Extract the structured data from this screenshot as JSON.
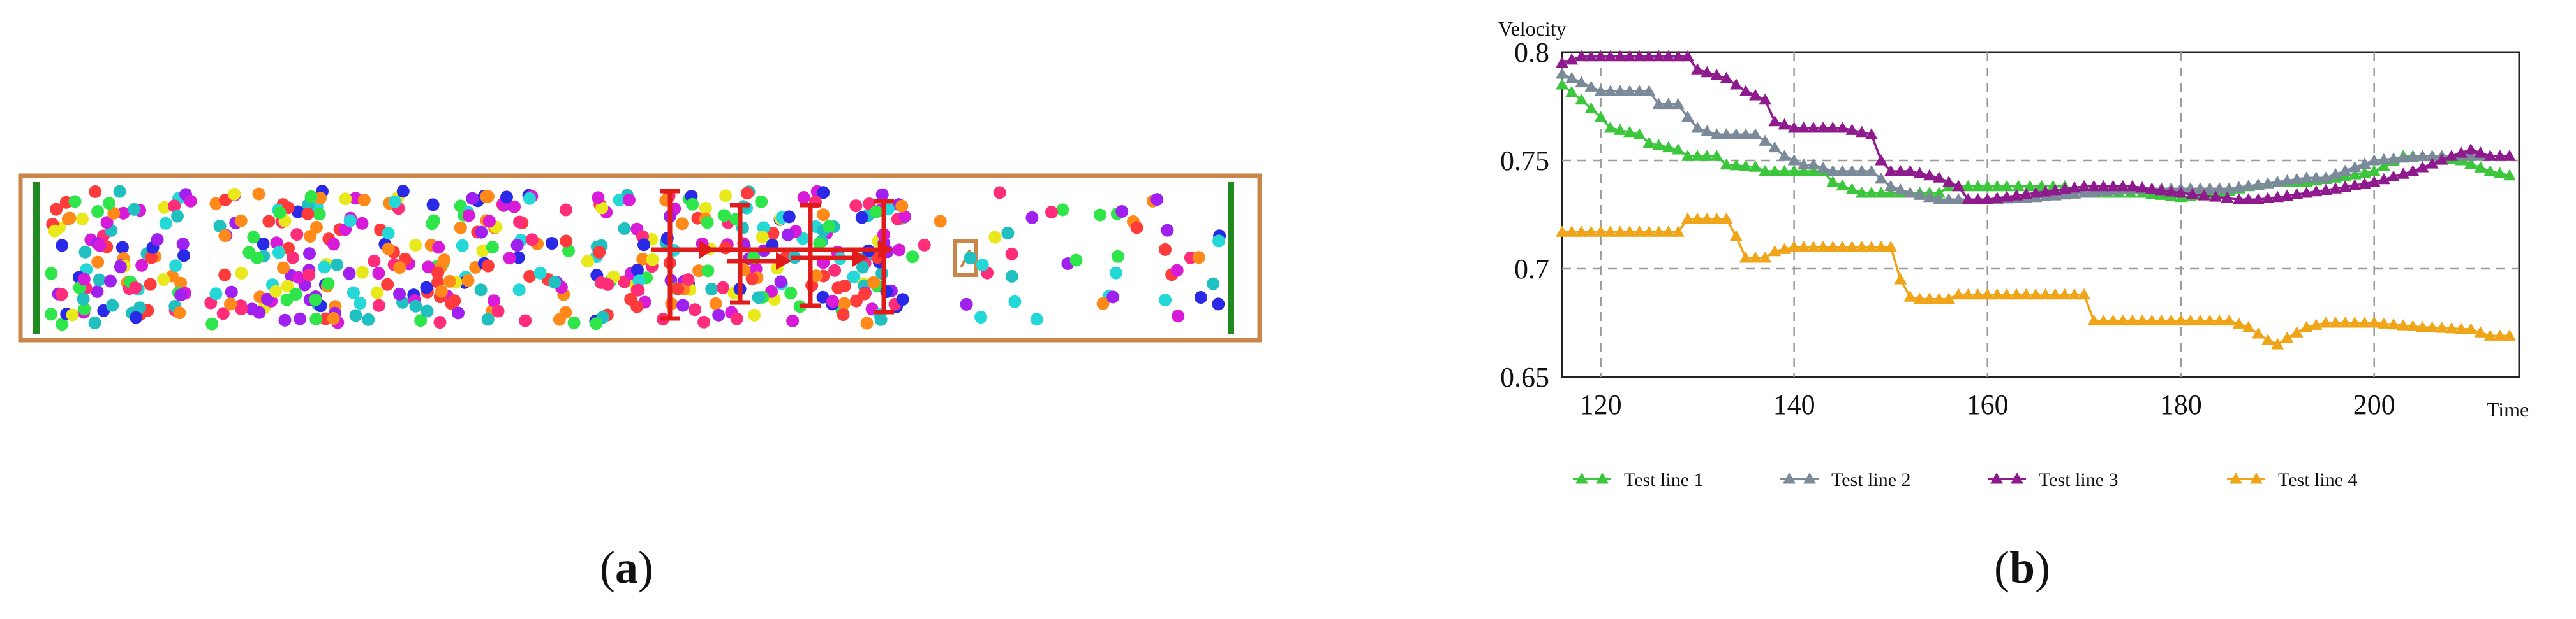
{
  "panel_a": {
    "caption_open": "(",
    "caption_letter": "a",
    "caption_close": ")",
    "colors": {
      "border": "#c8864a",
      "wall": "#1f8a1f",
      "arrow": "#e11a1a"
    },
    "particle_palette": [
      "#ff3b3b",
      "#2a2ae6",
      "#2ee64a",
      "#25d8d8",
      "#d81bd8",
      "#e8e81a",
      "#ff8a1a",
      "#a020f0",
      "#ff2d7a",
      "#20c0c0"
    ]
  },
  "chart_data": {
    "type": "line",
    "title": "",
    "xlabel": "Time",
    "ylabel": "Velocity",
    "xlim": [
      116,
      215
    ],
    "ylim": [
      0.65,
      0.8
    ],
    "xticks": [
      120,
      140,
      160,
      180,
      200
    ],
    "yticks": [
      0.65,
      0.7,
      0.75,
      0.8
    ],
    "xtick_labels": [
      "120",
      "140",
      "160",
      "180",
      "200"
    ],
    "ytick_labels": [
      "0.65",
      "0.7",
      "0.75",
      "0.8"
    ],
    "grid": true,
    "legend_position": "bottom",
    "series": [
      {
        "name": "Test line 1",
        "color": "#3cc63c",
        "x": [
          116,
          118,
          120,
          121,
          124,
          125,
          128,
          129,
          132,
          133,
          136,
          137,
          140,
          143,
          144,
          147,
          148,
          152,
          155,
          156,
          160,
          162,
          168,
          170,
          176,
          180,
          184,
          187,
          190,
          193,
          196,
          200,
          203,
          206,
          209,
          212,
          214
        ],
        "y": [
          0.785,
          0.778,
          0.77,
          0.765,
          0.762,
          0.758,
          0.755,
          0.752,
          0.752,
          0.748,
          0.747,
          0.745,
          0.745,
          0.745,
          0.74,
          0.735,
          0.735,
          0.735,
          0.735,
          0.738,
          0.738,
          0.738,
          0.738,
          0.735,
          0.735,
          0.733,
          0.735,
          0.738,
          0.74,
          0.74,
          0.742,
          0.745,
          0.752,
          0.752,
          0.75,
          0.745,
          0.743
        ]
      },
      {
        "name": "Test line 2",
        "color": "#7a8a99",
        "x": [
          116,
          120,
          125,
          126,
          128,
          129,
          130,
          132,
          135,
          136,
          138,
          139,
          141,
          142,
          144,
          148,
          150,
          152,
          155,
          158,
          160,
          165,
          170,
          175,
          180,
          185,
          190,
          193,
          195,
          200,
          205,
          208,
          210,
          214
        ],
        "y": [
          0.79,
          0.782,
          0.782,
          0.776,
          0.776,
          0.77,
          0.765,
          0.762,
          0.762,
          0.762,
          0.756,
          0.752,
          0.748,
          0.748,
          0.745,
          0.745,
          0.738,
          0.735,
          0.732,
          0.732,
          0.732,
          0.733,
          0.735,
          0.737,
          0.737,
          0.737,
          0.74,
          0.742,
          0.742,
          0.75,
          0.752,
          0.752,
          0.752,
          0.752
        ]
      },
      {
        "name": "Test line 3",
        "color": "#8e1a8e",
        "x": [
          116,
          118,
          120,
          125,
          129,
          130,
          133,
          135,
          137,
          138,
          140,
          145,
          148,
          149,
          150,
          152,
          155,
          157,
          158,
          160,
          165,
          170,
          175,
          180,
          186,
          188,
          190,
          193,
          196,
          200,
          204,
          208,
          210,
          212,
          214
        ],
        "y": [
          0.795,
          0.798,
          0.798,
          0.798,
          0.798,
          0.792,
          0.788,
          0.782,
          0.778,
          0.768,
          0.765,
          0.765,
          0.762,
          0.75,
          0.745,
          0.745,
          0.742,
          0.738,
          0.732,
          0.732,
          0.735,
          0.738,
          0.738,
          0.735,
          0.732,
          0.732,
          0.733,
          0.735,
          0.737,
          0.74,
          0.745,
          0.752,
          0.755,
          0.752,
          0.752
        ]
      },
      {
        "name": "Test line 4",
        "color": "#f0a418",
        "x": [
          116,
          120,
          125,
          128,
          129,
          133,
          134,
          135,
          137,
          138,
          140,
          145,
          150,
          151,
          152,
          153,
          156,
          157,
          160,
          165,
          170,
          171,
          175,
          180,
          185,
          187,
          188,
          189,
          190,
          191,
          193,
          195,
          200,
          205,
          210,
          212,
          214
        ],
        "y": [
          0.717,
          0.717,
          0.717,
          0.717,
          0.723,
          0.723,
          0.715,
          0.705,
          0.705,
          0.708,
          0.71,
          0.71,
          0.71,
          0.695,
          0.687,
          0.686,
          0.686,
          0.688,
          0.688,
          0.688,
          0.688,
          0.676,
          0.676,
          0.676,
          0.676,
          0.673,
          0.67,
          0.667,
          0.665,
          0.668,
          0.673,
          0.675,
          0.675,
          0.673,
          0.672,
          0.669,
          0.669
        ]
      }
    ]
  },
  "panel_b": {
    "caption_open": "(",
    "caption_letter": "b",
    "caption_close": ")"
  }
}
